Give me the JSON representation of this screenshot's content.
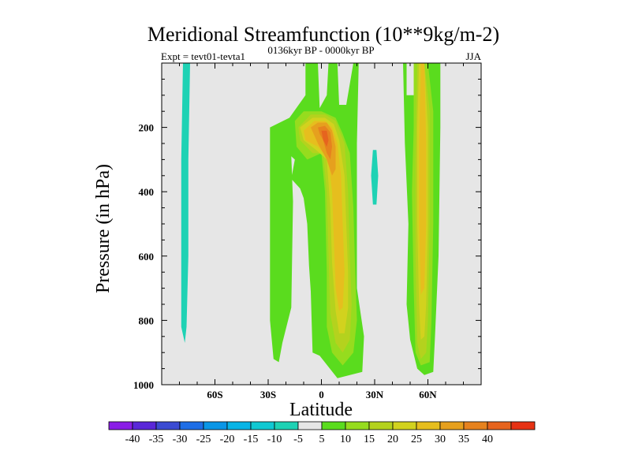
{
  "chart_data": {
    "type": "contour",
    "title": "Meridional Streamfunction (10**9kg/m-2)",
    "subtitle": "0136kyr BP - 0000kyr BP",
    "left_label": "Expt = tevt01-tevta1",
    "right_label": "JJA",
    "xlabel": "Latitude",
    "ylabel": "Pressure (in hPa)",
    "xlim": [
      -90,
      90
    ],
    "ylim": [
      1000,
      0
    ],
    "x_ticks": [
      {
        "value": -60,
        "label": "60S"
      },
      {
        "value": -30,
        "label": "30S"
      },
      {
        "value": 0,
        "label": "0"
      },
      {
        "value": 30,
        "label": "30N"
      },
      {
        "value": 60,
        "label": "60N"
      }
    ],
    "y_ticks": [
      {
        "value": 200,
        "label": "200"
      },
      {
        "value": 400,
        "label": "400"
      },
      {
        "value": 600,
        "label": "600"
      },
      {
        "value": 800,
        "label": "800"
      },
      {
        "value": 1000,
        "label": "1000"
      }
    ],
    "background_color": "#e6e6e6",
    "colorbar": {
      "colors": [
        "#8a1ee6",
        "#5a28d8",
        "#3c4bd2",
        "#1e6ee6",
        "#0a96e6",
        "#08b4e6",
        "#10c8d2",
        "#1ed2b4",
        "#e6e6e6",
        "#5adc1e",
        "#96dc1e",
        "#b4d21e",
        "#d2d21e",
        "#e6be1e",
        "#e6a01e",
        "#e6821e",
        "#e6641e",
        "#e63214"
      ],
      "labels": [
        "-40",
        "-35",
        "-30",
        "-25",
        "-20",
        "-15",
        "-10",
        "-5",
        "5",
        "10",
        "15",
        "20",
        "25",
        "30",
        "35",
        "40"
      ]
    },
    "regions": [
      {
        "level": -5,
        "color": "#1ed2b4",
        "points": [
          [
            -78,
            0
          ],
          [
            -74,
            0
          ],
          [
            -75,
            300
          ],
          [
            -75,
            600
          ],
          [
            -76,
            820
          ],
          [
            -77,
            870
          ],
          [
            -79,
            820
          ],
          [
            -79,
            600
          ],
          [
            -79,
            300
          ]
        ]
      },
      {
        "level": -5,
        "color": "#1ed2b4",
        "points": [
          [
            29,
            270
          ],
          [
            31,
            270
          ],
          [
            32,
            350
          ],
          [
            31,
            440
          ],
          [
            29,
            440
          ],
          [
            28,
            350
          ]
        ]
      },
      {
        "level": -5,
        "color": "#1ed2b4",
        "points": [
          [
            -3,
            680
          ],
          [
            -2,
            680
          ],
          [
            -2,
            790
          ],
          [
            -3,
            790
          ]
        ]
      },
      {
        "level": 5,
        "color": "#5adc1e",
        "points": [
          [
            -29,
            200
          ],
          [
            -18,
            170
          ],
          [
            -9,
            100
          ],
          [
            -9,
            0
          ],
          [
            -2,
            0
          ],
          [
            -1,
            140
          ],
          [
            3,
            100
          ],
          [
            4,
            0
          ],
          [
            9,
            0
          ],
          [
            10,
            130
          ],
          [
            14,
            130
          ],
          [
            18,
            0
          ],
          [
            21,
            0
          ],
          [
            20,
            250
          ],
          [
            20,
            700
          ],
          [
            24,
            850
          ],
          [
            23,
            960
          ],
          [
            9,
            980
          ],
          [
            -1,
            910
          ],
          [
            -5,
            900
          ],
          [
            -6,
            710
          ],
          [
            -7,
            630
          ],
          [
            -8,
            500
          ],
          [
            -10,
            420
          ],
          [
            -12,
            390
          ],
          [
            -17,
            360
          ],
          [
            -15,
            300
          ],
          [
            -17,
            290
          ],
          [
            -16,
            430
          ],
          [
            -17,
            760
          ],
          [
            -22,
            870
          ],
          [
            -24,
            930
          ],
          [
            -27,
            920
          ],
          [
            -29,
            800
          ],
          [
            -29,
            500
          ]
        ]
      },
      {
        "level": 5,
        "color": "#5adc1e",
        "points": [
          [
            46,
            0
          ],
          [
            48,
            0
          ],
          [
            48,
            100
          ],
          [
            52,
            100
          ],
          [
            60,
            0
          ],
          [
            67,
            0
          ],
          [
            67,
            200
          ],
          [
            66,
            600
          ],
          [
            64,
            850
          ],
          [
            63,
            960
          ],
          [
            58,
            970
          ],
          [
            54,
            950
          ],
          [
            50,
            860
          ],
          [
            48,
            750
          ],
          [
            49,
            500
          ],
          [
            47,
            250
          ]
        ]
      },
      {
        "level": 10,
        "color": "#96dc1e",
        "points": [
          [
            -15,
            180
          ],
          [
            -10,
            150
          ],
          [
            0,
            150
          ],
          [
            8,
            170
          ],
          [
            12,
            220
          ],
          [
            16,
            280
          ],
          [
            18,
            450
          ],
          [
            19,
            650
          ],
          [
            20,
            800
          ],
          [
            18,
            900
          ],
          [
            12,
            940
          ],
          [
            6,
            900
          ],
          [
            3,
            820
          ],
          [
            3,
            650
          ],
          [
            2,
            400
          ],
          [
            0,
            280
          ],
          [
            -8,
            300
          ],
          [
            -14,
            260
          ]
        ]
      },
      {
        "level": 10,
        "color": "#96dc1e",
        "points": [
          [
            52,
            0
          ],
          [
            56,
            0
          ],
          [
            60,
            0
          ],
          [
            63,
            150
          ],
          [
            63,
            500
          ],
          [
            62,
            800
          ],
          [
            61,
            930
          ],
          [
            56,
            940
          ],
          [
            53,
            900
          ],
          [
            52,
            700
          ],
          [
            51,
            400
          ],
          [
            52,
            200
          ]
        ]
      },
      {
        "level": 15,
        "color": "#b4d21e",
        "points": [
          [
            -13,
            200
          ],
          [
            -6,
            160
          ],
          [
            2,
            160
          ],
          [
            8,
            180
          ],
          [
            13,
            250
          ],
          [
            15,
            400
          ],
          [
            16,
            600
          ],
          [
            17,
            750
          ],
          [
            16,
            860
          ],
          [
            12,
            900
          ],
          [
            8,
            870
          ],
          [
            5,
            780
          ],
          [
            4,
            600
          ],
          [
            3,
            400
          ],
          [
            1,
            280
          ],
          [
            -5,
            280
          ],
          [
            -12,
            240
          ]
        ]
      },
      {
        "level": 15,
        "color": "#b4d21e",
        "points": [
          [
            54,
            0
          ],
          [
            58,
            0
          ],
          [
            61,
            150
          ],
          [
            61,
            500
          ],
          [
            60,
            800
          ],
          [
            59,
            900
          ],
          [
            56,
            920
          ],
          [
            54,
            870
          ],
          [
            53,
            600
          ],
          [
            53,
            300
          ]
        ]
      },
      {
        "level": 20,
        "color": "#d2d21e",
        "points": [
          [
            -12,
            200
          ],
          [
            -5,
            170
          ],
          [
            2,
            170
          ],
          [
            7,
            190
          ],
          [
            10,
            240
          ],
          [
            13,
            350
          ],
          [
            14,
            500
          ],
          [
            15,
            650
          ],
          [
            15,
            760
          ],
          [
            13,
            840
          ],
          [
            10,
            840
          ],
          [
            8,
            770
          ],
          [
            6,
            620
          ],
          [
            5,
            450
          ],
          [
            3,
            300
          ],
          [
            -3,
            270
          ],
          [
            -10,
            240
          ]
        ]
      },
      {
        "level": 20,
        "color": "#d2d21e",
        "points": [
          [
            55,
            0
          ],
          [
            58,
            0
          ],
          [
            60,
            200
          ],
          [
            60,
            500
          ],
          [
            59,
            750
          ],
          [
            58,
            850
          ],
          [
            56,
            860
          ],
          [
            55,
            750
          ],
          [
            54,
            500
          ],
          [
            54,
            200
          ]
        ]
      },
      {
        "level": 25,
        "color": "#e6be1e",
        "points": [
          [
            -10,
            210
          ],
          [
            -4,
            180
          ],
          [
            2,
            180
          ],
          [
            6,
            200
          ],
          [
            9,
            250
          ],
          [
            11,
            350
          ],
          [
            12,
            500
          ],
          [
            13,
            650
          ],
          [
            12,
            760
          ],
          [
            10,
            770
          ],
          [
            8,
            700
          ],
          [
            7,
            550
          ],
          [
            6,
            400
          ],
          [
            4,
            300
          ],
          [
            -2,
            260
          ],
          [
            -9,
            240
          ]
        ]
      },
      {
        "level": 25,
        "color": "#e6be1e",
        "points": [
          [
            56,
            0
          ],
          [
            58,
            0
          ],
          [
            59,
            250
          ],
          [
            59,
            500
          ],
          [
            58,
            700
          ],
          [
            56,
            720
          ],
          [
            55,
            500
          ],
          [
            55,
            250
          ]
        ]
      },
      {
        "level": 30,
        "color": "#e6a01e",
        "points": [
          [
            -6,
            200
          ],
          [
            -2,
            185
          ],
          [
            3,
            185
          ],
          [
            6,
            210
          ],
          [
            8,
            260
          ],
          [
            8,
            330
          ],
          [
            6,
            350
          ],
          [
            3,
            300
          ],
          [
            -2,
            250
          ]
        ]
      },
      {
        "level": 35,
        "color": "#e6821e",
        "points": [
          [
            -2,
            200
          ],
          [
            2,
            195
          ],
          [
            5,
            215
          ],
          [
            6,
            260
          ],
          [
            5,
            300
          ],
          [
            3,
            280
          ],
          [
            1,
            240
          ],
          [
            -1,
            220
          ]
        ]
      },
      {
        "level": 40,
        "color": "#e6641e",
        "points": [
          [
            0,
            210
          ],
          [
            3,
            210
          ],
          [
            4,
            240
          ],
          [
            3,
            260
          ],
          [
            1,
            240
          ]
        ]
      }
    ]
  }
}
